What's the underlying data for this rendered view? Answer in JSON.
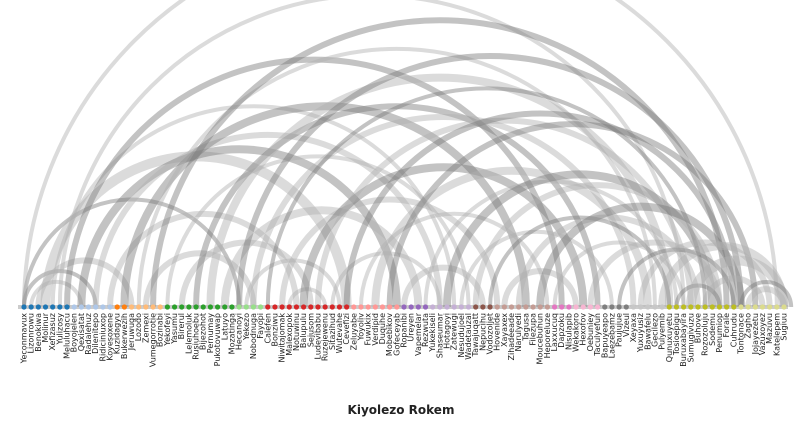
{
  "title": "Kiyolezo Rokem",
  "colors": {
    "baseline": "#cccccc",
    "arc_heavy": "#7a7a7a",
    "arc_light": "#b0b0b0",
    "text": "#222222",
    "groups": [
      "#1f77b4",
      "#aec7e8",
      "#ff7f0e",
      "#ffbb78",
      "#2ca02c",
      "#98df8a",
      "#d62728",
      "#ff9896",
      "#9467bd",
      "#c5b0d5",
      "#8c564b",
      "#c49c94",
      "#e377c2",
      "#f7b6d2",
      "#7f7f7f",
      "#c7c7c7",
      "#bcbd22",
      "#dbdb8d"
    ]
  },
  "nodes": [
    {
      "label": "Yeconmavux",
      "group": 0
    },
    {
      "label": "Lizonrowu",
      "group": 0
    },
    {
      "label": "Benokiwa",
      "group": 0
    },
    {
      "label": "Molinur",
      "group": 0
    },
    {
      "label": "Xefizasuz",
      "group": 0
    },
    {
      "label": "Yulizosy",
      "group": 0
    },
    {
      "label": "Meluluhacu",
      "group": 0
    },
    {
      "label": "Boyojelen",
      "group": 1
    },
    {
      "label": "Qexisatat",
      "group": 1
    },
    {
      "label": "Radalehuz",
      "group": 1
    },
    {
      "label": "Dilenitepo",
      "group": 1
    },
    {
      "label": "Ridiciniuxop",
      "group": 1
    },
    {
      "label": "Koyesoxene",
      "group": 1
    },
    {
      "label": "Kuzidagyu",
      "group": 2
    },
    {
      "label": "Bukerwezih",
      "group": 2
    },
    {
      "label": "Jeruwuga",
      "group": 3
    },
    {
      "label": "Lozodo",
      "group": 3
    },
    {
      "label": "Zemexi",
      "group": 3
    },
    {
      "label": "Vumegorrotie",
      "group": 3
    },
    {
      "label": "Bozinabi",
      "group": 3
    },
    {
      "label": "Yekofeyi",
      "group": 4
    },
    {
      "label": "Yasumu",
      "group": 4
    },
    {
      "label": "Birerul",
      "group": 4
    },
    {
      "label": "Lelemoluk",
      "group": 4
    },
    {
      "label": "Rusiuhoebu",
      "group": 4
    },
    {
      "label": "Bijezohot",
      "group": 4
    },
    {
      "label": "Pernumay",
      "group": 4
    },
    {
      "label": "Pukotovuwap",
      "group": 4
    },
    {
      "label": "Latuyo",
      "group": 4
    },
    {
      "label": "Mozatinga",
      "group": 4
    },
    {
      "label": "Hecanoyi",
      "group": 5
    },
    {
      "label": "Yekezo",
      "group": 5
    },
    {
      "label": "Nobodnuga",
      "group": 5
    },
    {
      "label": "Fayopi",
      "group": 5
    },
    {
      "label": "Calefen",
      "group": 6
    },
    {
      "label": "Bonziwu",
      "group": 6
    },
    {
      "label": "Niwitajomak",
      "group": 6
    },
    {
      "label": "Malexopok",
      "group": 6
    },
    {
      "label": "Notuwinu",
      "group": 6
    },
    {
      "label": "Balupulu",
      "group": 6
    },
    {
      "label": "Sejusom",
      "group": 6
    },
    {
      "label": "Ludevibabu",
      "group": 6
    },
    {
      "label": "Ruzejewenu",
      "group": 6
    },
    {
      "label": "Sitazihud",
      "group": 6
    },
    {
      "label": "Wutevahe",
      "group": 6
    },
    {
      "label": "Cevefizi",
      "group": 6
    },
    {
      "label": "Zeluyabe",
      "group": 7
    },
    {
      "label": "Yoyoliv",
      "group": 7
    },
    {
      "label": "Fuwukix",
      "group": 7
    },
    {
      "label": "Verdipid",
      "group": 7
    },
    {
      "label": "Duquhe",
      "group": 7
    },
    {
      "label": "Mobebikov",
      "group": 7
    },
    {
      "label": "Gofeceyab",
      "group": 7
    },
    {
      "label": "Ropanibi",
      "group": 8
    },
    {
      "label": "Ureyen",
      "group": 8
    },
    {
      "label": "Vapemelar",
      "group": 8
    },
    {
      "label": "Rezwuta",
      "group": 8
    },
    {
      "label": "Yukekiseli",
      "group": 9
    },
    {
      "label": "Shaseumar",
      "group": 9
    },
    {
      "label": "Hotagoyi",
      "group": 9
    },
    {
      "label": "Zatewugi",
      "group": 9
    },
    {
      "label": "Nesudujoel",
      "group": 9
    },
    {
      "label": "Wadetauzal",
      "group": 9
    },
    {
      "label": "Tawajuqatt",
      "group": 10
    },
    {
      "label": "Nepucihu",
      "group": 10
    },
    {
      "label": "Vodozoljet",
      "group": 10
    },
    {
      "label": "Hovenide",
      "group": 11
    },
    {
      "label": "Xayaxex",
      "group": 11
    },
    {
      "label": "Zihadeeade",
      "group": 11
    },
    {
      "label": "Narulyedi",
      "group": 11
    },
    {
      "label": "Tagusa",
      "group": 11
    },
    {
      "label": "Filezupa",
      "group": 11
    },
    {
      "label": "Moucebuhun",
      "group": 11
    },
    {
      "label": "Heporeluze",
      "group": 11
    },
    {
      "label": "Laxxucuq",
      "group": 12
    },
    {
      "label": "Dapzoku",
      "group": 12
    },
    {
      "label": "Nisulapib",
      "group": 12
    },
    {
      "label": "Wekakoro",
      "group": 13
    },
    {
      "label": "Hexofov",
      "group": 13
    },
    {
      "label": "Oebuniey",
      "group": 13
    },
    {
      "label": "Taculyefun",
      "group": 13
    },
    {
      "label": "Bapuyeapo",
      "group": 14
    },
    {
      "label": "Laezebamz",
      "group": 14
    },
    {
      "label": "Paujujue",
      "group": 14
    },
    {
      "label": "Vizeul",
      "group": 14
    },
    {
      "label": "Xeyaxa",
      "group": 15
    },
    {
      "label": "Yuxuyusiz",
      "group": 15
    },
    {
      "label": "Bawafelu",
      "group": 15
    },
    {
      "label": "Gecilezo",
      "group": 15
    },
    {
      "label": "Pulyemib",
      "group": 15
    },
    {
      "label": "Qunuxuyetu",
      "group": 16
    },
    {
      "label": "Tosioepigu",
      "group": 16
    },
    {
      "label": "Buruxabayira",
      "group": 16
    },
    {
      "label": "Sumugivuzu",
      "group": 16
    },
    {
      "label": "Buhove",
      "group": 16
    },
    {
      "label": "Rozozoluju",
      "group": 16
    },
    {
      "label": "Sodemu",
      "group": 16
    },
    {
      "label": "Penumiop",
      "group": 16
    },
    {
      "label": "Forale",
      "group": 16
    },
    {
      "label": "Cuhrudu",
      "group": 16
    },
    {
      "label": "Tontonace",
      "group": 17
    },
    {
      "label": "Zagho",
      "group": 17
    },
    {
      "label": "Jojayezetu",
      "group": 17
    },
    {
      "label": "Vazuxoyez",
      "group": 17
    },
    {
      "label": "Mazuvu",
      "group": 17
    },
    {
      "label": "Katelepem",
      "group": 17
    },
    {
      "label": "Sugiuu",
      "group": 17
    }
  ],
  "links": [
    [
      0,
      10,
      2
    ],
    [
      1,
      8,
      2
    ],
    [
      2,
      15,
      3
    ],
    [
      0,
      30,
      2
    ],
    [
      3,
      45,
      5
    ],
    [
      4,
      60,
      2
    ],
    [
      6,
      75,
      3
    ],
    [
      0,
      105,
      2
    ],
    [
      5,
      92,
      2
    ],
    [
      8,
      52,
      4
    ],
    [
      10,
      58,
      3
    ],
    [
      12,
      38,
      3
    ],
    [
      14,
      70,
      4
    ],
    [
      16,
      88,
      2
    ],
    [
      17,
      32,
      3
    ],
    [
      18,
      98,
      3
    ],
    [
      20,
      62,
      2
    ],
    [
      22,
      40,
      3
    ],
    [
      24,
      80,
      3
    ],
    [
      26,
      90,
      4
    ],
    [
      28,
      55,
      4
    ],
    [
      30,
      100,
      3
    ],
    [
      31,
      44,
      2
    ],
    [
      32,
      85,
      3
    ],
    [
      34,
      95,
      2
    ],
    [
      36,
      66,
      3
    ],
    [
      37,
      42,
      2
    ],
    [
      39,
      78,
      4
    ],
    [
      41,
      93,
      3
    ],
    [
      43,
      58,
      2
    ],
    [
      45,
      99,
      3
    ],
    [
      47,
      73,
      2
    ],
    [
      49,
      87,
      4
    ],
    [
      51,
      102,
      3
    ],
    [
      53,
      64,
      3
    ],
    [
      56,
      91,
      2
    ],
    [
      59,
      96,
      4
    ],
    [
      61,
      82,
      2
    ],
    [
      63,
      97,
      3
    ],
    [
      65,
      90,
      2
    ],
    [
      67,
      77,
      3
    ],
    [
      69,
      94,
      3
    ],
    [
      72,
      100,
      4
    ],
    [
      74,
      92,
      2
    ],
    [
      79,
      97,
      3
    ],
    [
      83,
      99,
      2
    ],
    [
      86,
      104,
      3
    ],
    [
      89,
      106,
      4
    ],
    [
      91,
      97,
      2
    ],
    [
      93,
      106,
      5
    ],
    [
      95,
      103,
      3
    ],
    [
      100,
      107,
      2
    ],
    [
      101,
      106,
      3
    ]
  ]
}
